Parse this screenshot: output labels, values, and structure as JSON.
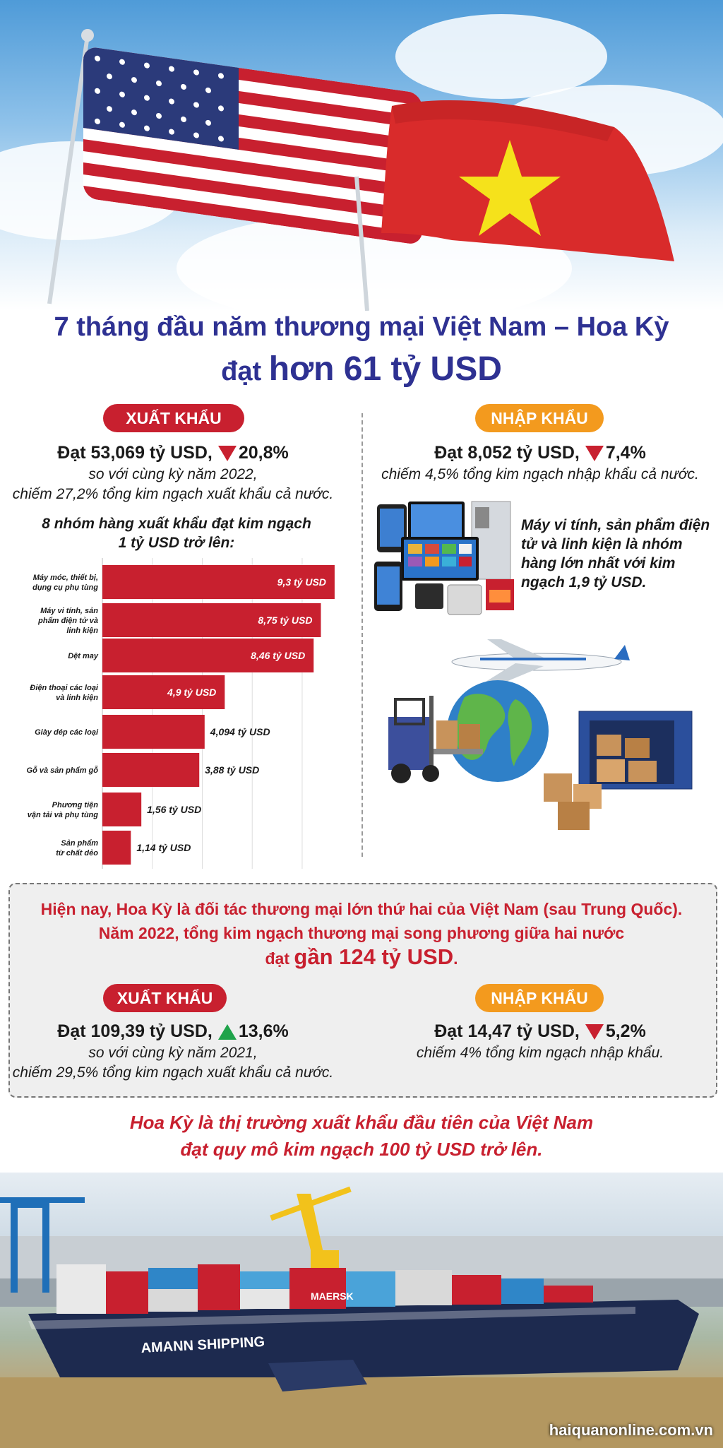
{
  "title": {
    "line1": "7 tháng đầu năm thương mại Việt Nam – Hoa Kỳ",
    "line2_prefix": "đạt ",
    "line2_big": "hơn 61 tỷ USD"
  },
  "section7m": {
    "export": {
      "label": "XUẤT KHẨU",
      "value_text": "Đạt 53,069 tỷ USD,",
      "change": "20,8%",
      "sub1": "so với cùng kỳ năm 2022,",
      "sub2": "chiếm 27,2% tổng kim ngạch xuất khẩu cả nước."
    },
    "import": {
      "label": "NHẬP KHẨU",
      "value_text": "Đạt 8,052 tỷ USD,",
      "change": "7,4%",
      "sub1": "chiếm 4,5% tổng kim ngạch nhập khẩu cả nước.",
      "note": "Máy vi tính, sản phẩm điện tử và linh kiện là nhóm hàng lớn nhất với kim ngạch 1,9 tỷ USD."
    },
    "chart_heading1": "8 nhóm hàng xuất khẩu đạt kim ngạch",
    "chart_heading2": "1 tỷ USD trở lên:"
  },
  "chart_data": {
    "type": "bar",
    "orientation": "horizontal",
    "title": "8 nhóm hàng xuất khẩu đạt kim ngạch 1 tỷ USD trở lên:",
    "categories": [
      [
        "Máy móc, thiết bị,",
        "dụng cụ phụ tùng"
      ],
      [
        "Máy vi tính, sản",
        "phẩm điện tử và",
        "linh kiện"
      ],
      [
        "Dệt may"
      ],
      [
        "Điện thoại các loại",
        "và linh kiện"
      ],
      [
        "Giày dép các loại"
      ],
      [
        "Gỗ và sản phẩm gỗ"
      ],
      [
        "Phương tiện",
        "vận tải và phụ tùng"
      ],
      [
        "Sản phẩm",
        "từ chất dẻo"
      ]
    ],
    "values": [
      9.3,
      8.75,
      8.46,
      4.9,
      4.094,
      3.88,
      1.56,
      1.14
    ],
    "value_labels": [
      "9,3 tỷ USD",
      "8,75 tỷ USD",
      "8,46 tỷ USD",
      "4,9 tỷ USD",
      "4,094 tỷ USD",
      "3,88 tỷ USD",
      "1,56 tỷ USD",
      "1,14 tỷ USD"
    ],
    "unit": "tỷ USD",
    "bar_color": "#c8202f",
    "grid": true,
    "xlim": [
      0,
      9.5
    ]
  },
  "section2022": {
    "text1": "Hiện nay, Hoa Kỳ là đối tác thương mại lớn thứ hai của Việt Nam (sau Trung Quốc).",
    "text2": "Năm 2022, tổng kim ngạch thương mại song phương giữa hai nước",
    "text3_prefix": "đạt ",
    "text3_big": "gần 124 tỷ USD",
    "text3_suffix": ".",
    "export": {
      "label": "XUẤT KHẨU",
      "value_text": "Đạt 109,39 tỷ USD,",
      "change": "13,6%",
      "sub1": "so với cùng kỳ năm 2021,",
      "sub2": "chiếm 29,5% tổng kim ngạch xuất khẩu cả nước."
    },
    "import": {
      "label": "NHẬP KHẨU",
      "value_text": "Đạt 14,47 tỷ USD,",
      "change": "5,2%",
      "sub1": "chiếm 4% tổng kim ngạch nhập khẩu."
    }
  },
  "closing": {
    "line1": "Hoa Kỳ là thị trường xuất khẩu đầu tiên của Việt Nam",
    "line2": "đạt quy mô kim ngạch 100 tỷ USD trở lên."
  },
  "images": {
    "hull_text": "AMANN SHIPPING",
    "container_brand": "MAERSK"
  },
  "source": "haiquanonline.com.vn",
  "colors": {
    "title_blue": "#2e3192",
    "accent_red": "#c8202f",
    "accent_orange": "#f39a1e",
    "up_green": "#1fa34a"
  }
}
